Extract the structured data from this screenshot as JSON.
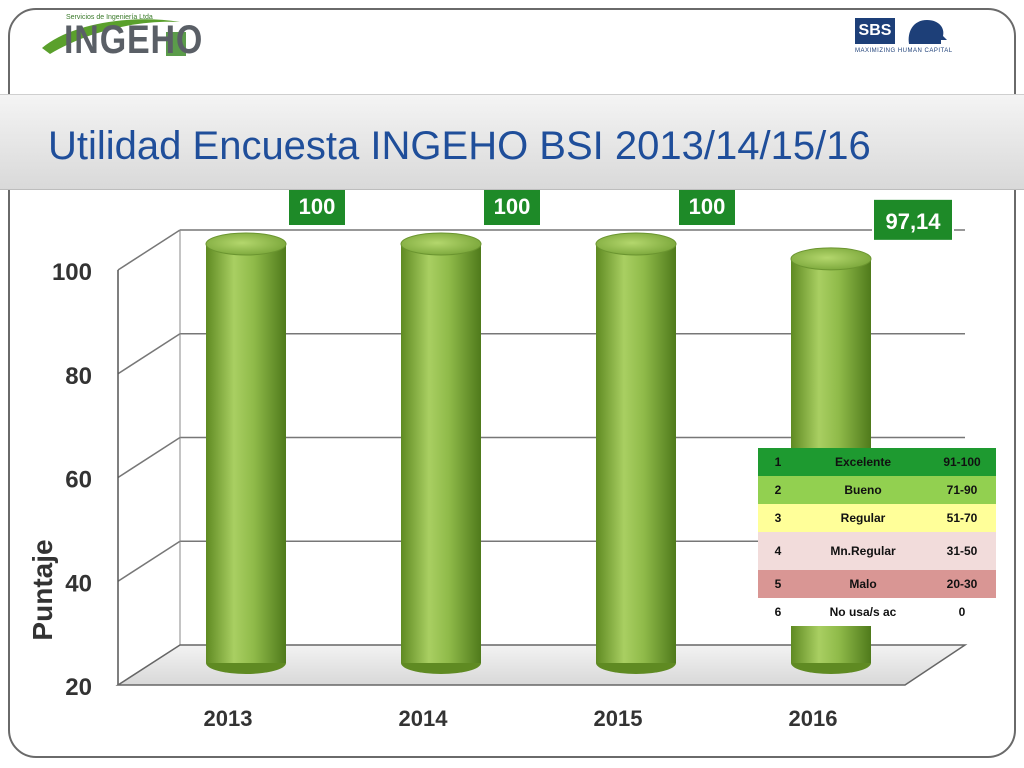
{
  "header": {
    "title": "Utilidad Encuesta  INGEHO BSI 2013/14/15/16",
    "logo_left": {
      "text": "INGEHO",
      "small": "Servicios de Ingeniería Ltda"
    },
    "logo_right": {
      "text": "SBS",
      "tagline": "MAXIMIZING HUMAN CAPITAL"
    }
  },
  "colors": {
    "title": "#1f4e9a",
    "bar": "#8fba49",
    "label_box": "#1e8a28"
  },
  "chart_data": {
    "type": "bar",
    "categories": [
      "2013",
      "2014",
      "2015",
      "2016"
    ],
    "values": [
      100,
      100,
      100,
      97.14
    ],
    "data_labels": [
      "100",
      "100",
      "100",
      "97,14"
    ],
    "ylabel": "Puntaje",
    "ylim": [
      20,
      100
    ],
    "yticks": [
      20,
      40,
      60,
      80,
      100
    ],
    "grid": true,
    "style": "3d-cylinder"
  },
  "legend_table": {
    "rows": [
      {
        "num": "1",
        "label": "Excelente",
        "range": "91-100",
        "color": "#1e9a30"
      },
      {
        "num": "2",
        "label": "Bueno",
        "range": "71-90",
        "color": "#92d050"
      },
      {
        "num": "3",
        "label": "Regular",
        "range": "51-70",
        "color": "#ffff99"
      },
      {
        "num": "4",
        "label": "Mn.Regular",
        "range": "31-50",
        "color": "#f2dcdb"
      },
      {
        "num": "5",
        "label": "Malo",
        "range": "20-30",
        "color": "#d99694"
      },
      {
        "num": "6",
        "label": "No usa/s ac",
        "range": "0",
        "color": "#ffffff"
      }
    ]
  }
}
